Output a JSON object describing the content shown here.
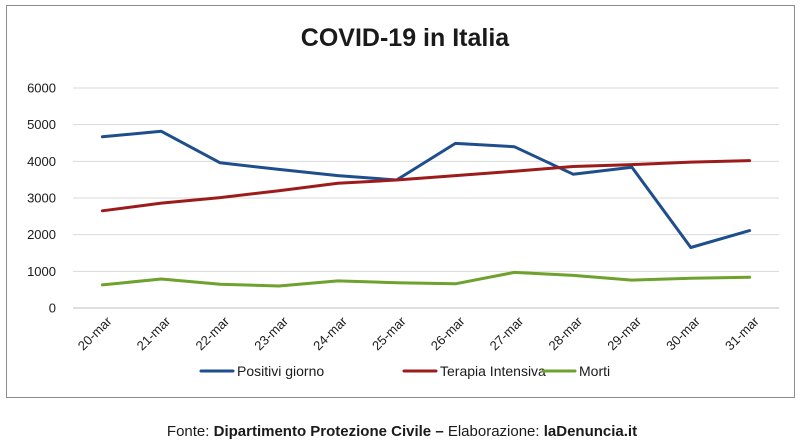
{
  "colors": {
    "positivi": "#1f4e8c",
    "terapia": "#9c1c1c",
    "morti": "#6fa12e",
    "gridline": "#d9d9d9",
    "axis": "#bfbfbf"
  },
  "source": {
    "fonte_label": "Fonte:",
    "fonte_value": "Dipartimento Protezione Civile –",
    "elab_label": "Elaborazione:",
    "elab_value": "laDenuncia.it"
  },
  "chart_data": {
    "type": "line",
    "title": "COVID-19 in Italia",
    "xlabel": "",
    "ylabel": "",
    "ylim": [
      0,
      6000
    ],
    "yticks": [
      0,
      1000,
      2000,
      3000,
      4000,
      5000,
      6000
    ],
    "grid": true,
    "legend_position": "bottom",
    "categories": [
      "20-mar",
      "21-mar",
      "22-mar",
      "23-mar",
      "24-mar",
      "25-mar",
      "26-mar",
      "27-mar",
      "28-mar",
      "29-mar",
      "30-mar",
      "31-mar"
    ],
    "series": [
      {
        "name": "Positivi giorno",
        "color_key": "positivi",
        "values": [
          4670,
          4820,
          3960,
          3780,
          3610,
          3490,
          4490,
          4400,
          3650,
          3840,
          1650,
          2110
        ]
      },
      {
        "name": "Terapia Intensiva",
        "color_key": "terapia",
        "values": [
          2650,
          2860,
          3010,
          3200,
          3400,
          3490,
          3610,
          3730,
          3860,
          3910,
          3980,
          4020
        ]
      },
      {
        "name": "Morti",
        "color_key": "morti",
        "values": [
          630,
          790,
          650,
          600,
          740,
          690,
          660,
          970,
          890,
          760,
          810,
          840
        ]
      }
    ]
  }
}
